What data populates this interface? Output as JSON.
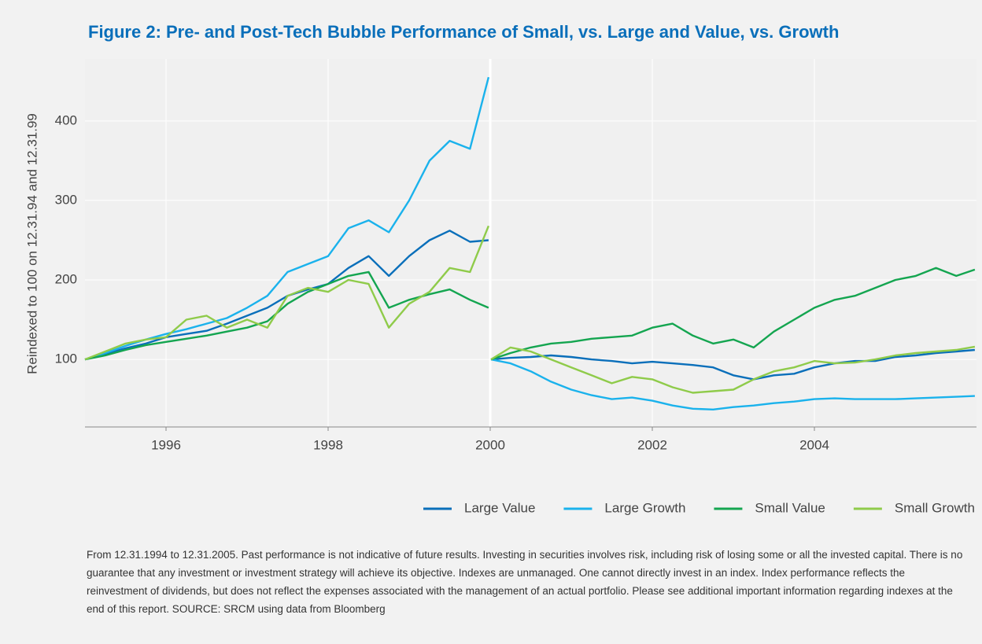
{
  "chart_data": {
    "type": "line",
    "title": "Figure 2: Pre- and Post-Tech Bubble Performance of Small, vs. Large and Value, vs. Growth",
    "y_label": "Reindexed to 100 on 12.31.94 and 12.31.99",
    "footnote": "From 12.31.1994 to 12.31.2005. Past performance is not indicative of future results. Investing in securities involves risk, including risk of losing some or all the invested capital. There is no guarantee that any investment or investment strategy will achieve its objective. Indexes are unmanaged. One cannot directly invest in an index. Index performance reflects the reinvestment of dividends, but does not reflect the expenses associated with the management of an actual portfolio. Please see additional important information regarding indexes at the end of this report. SOURCE: SRCM using data from Bloomberg",
    "x": [
      1995.0,
      1995.25,
      1995.5,
      1995.75,
      1996.0,
      1996.25,
      1996.5,
      1996.75,
      1997.0,
      1997.25,
      1997.5,
      1997.75,
      1998.0,
      1998.25,
      1998.5,
      1998.75,
      1999.0,
      1999.25,
      1999.5,
      1999.75,
      1999.98,
      2000.0,
      2000.01,
      2000.25,
      2000.5,
      2000.75,
      2001.0,
      2001.25,
      2001.5,
      2001.75,
      2002.0,
      2002.25,
      2002.5,
      2002.75,
      2003.0,
      2003.25,
      2003.5,
      2003.75,
      2004.0,
      2004.25,
      2004.5,
      2004.75,
      2005.0,
      2005.25,
      2005.5,
      2005.75,
      2005.98
    ],
    "series": [
      {
        "name": "Large Value",
        "color": "#0a6fba",
        "values": [
          100,
          107,
          114,
          120,
          128,
          132,
          136,
          145,
          155,
          165,
          180,
          188,
          195,
          215,
          230,
          205,
          230,
          250,
          262,
          248,
          250,
          null,
          100,
          102,
          103,
          105,
          103,
          100,
          98,
          95,
          97,
          95,
          93,
          90,
          80,
          75,
          80,
          82,
          90,
          95,
          98,
          98,
          103,
          105,
          108,
          110,
          112
        ]
      },
      {
        "name": "Large Growth",
        "color": "#1ab2ec",
        "values": [
          100,
          108,
          117,
          125,
          132,
          138,
          145,
          152,
          165,
          180,
          210,
          220,
          230,
          265,
          275,
          260,
          300,
          350,
          375,
          365,
          455,
          null,
          100,
          95,
          85,
          72,
          62,
          55,
          50,
          52,
          48,
          42,
          38,
          37,
          40,
          42,
          45,
          47,
          50,
          51,
          50,
          50,
          50,
          51,
          52,
          53,
          54
        ]
      },
      {
        "name": "Small Value",
        "color": "#14a550",
        "values": [
          100,
          105,
          112,
          118,
          122,
          126,
          130,
          135,
          140,
          148,
          170,
          185,
          195,
          205,
          210,
          165,
          175,
          182,
          188,
          175,
          165,
          null,
          100,
          108,
          115,
          120,
          122,
          126,
          128,
          130,
          140,
          145,
          130,
          120,
          125,
          115,
          135,
          150,
          165,
          175,
          180,
          190,
          200,
          205,
          215,
          205,
          213
        ]
      },
      {
        "name": "Small Growth",
        "color": "#8fcb4a",
        "values": [
          100,
          110,
          120,
          125,
          128,
          150,
          155,
          140,
          150,
          140,
          180,
          190,
          185,
          200,
          195,
          140,
          170,
          185,
          215,
          210,
          268,
          null,
          100,
          115,
          110,
          100,
          90,
          80,
          70,
          78,
          75,
          65,
          58,
          60,
          62,
          75,
          85,
          90,
          98,
          95,
          96,
          100,
          105,
          108,
          110,
          112,
          116
        ]
      }
    ],
    "xlim": [
      1995,
      2006
    ],
    "xticks": [
      1996,
      1998,
      2000,
      2002,
      2004
    ],
    "ylim": [
      15,
      478
    ],
    "yticks": [
      100,
      200,
      300,
      400
    ],
    "grid": true,
    "legend": "bottom-right"
  }
}
